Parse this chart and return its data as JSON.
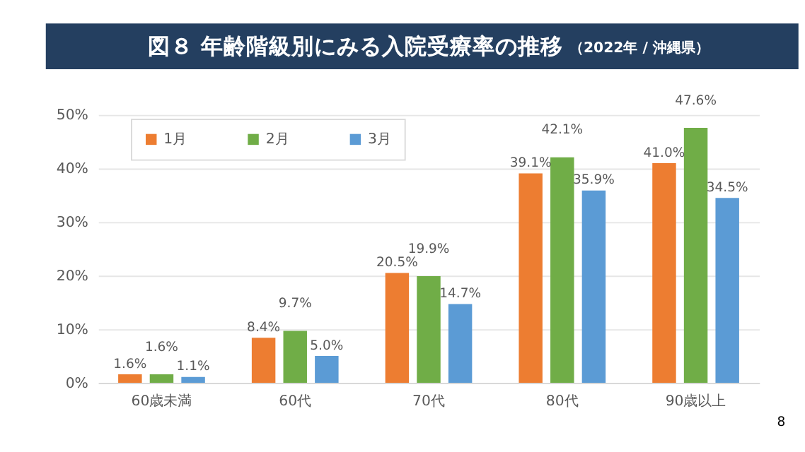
{
  "chart_data": {
    "type": "bar",
    "title": "図８ 年齢階級別にみる入院受療率の推移",
    "subtitle": "（2022年 / 沖縄県）",
    "categories": [
      "60歳未満",
      "60代",
      "70代",
      "80代",
      "90歳以上"
    ],
    "series": [
      {
        "name": "1月",
        "color": "#ed7d31",
        "values": [
          1.6,
          8.4,
          20.5,
          39.1,
          41.0
        ],
        "value_labels": [
          "1.6%",
          "8.4%",
          "20.5%",
          "39.1%",
          "41.0%"
        ]
      },
      {
        "name": "2月",
        "color": "#70ad47",
        "values": [
          1.6,
          9.7,
          19.9,
          42.1,
          47.6
        ],
        "value_labels": [
          "1.6%",
          "9.7%",
          "19.9%",
          "42.1%",
          "47.6%"
        ]
      },
      {
        "name": "3月",
        "color": "#5b9bd5",
        "values": [
          1.1,
          5.0,
          14.7,
          35.9,
          34.5
        ],
        "value_labels": [
          "1.1%",
          "5.0%",
          "14.7%",
          "35.9%",
          "34.5%"
        ]
      }
    ],
    "ylim": [
      0,
      50
    ],
    "yticks": [
      {
        "value": 0,
        "label": "0%"
      },
      {
        "value": 10,
        "label": "10%"
      },
      {
        "value": 20,
        "label": "20%"
      },
      {
        "value": 30,
        "label": "30%"
      },
      {
        "value": 40,
        "label": "40%"
      },
      {
        "value": 50,
        "label": "50%"
      }
    ],
    "grid": "y",
    "legend": "top left",
    "annotations": [
      "8"
    ]
  }
}
